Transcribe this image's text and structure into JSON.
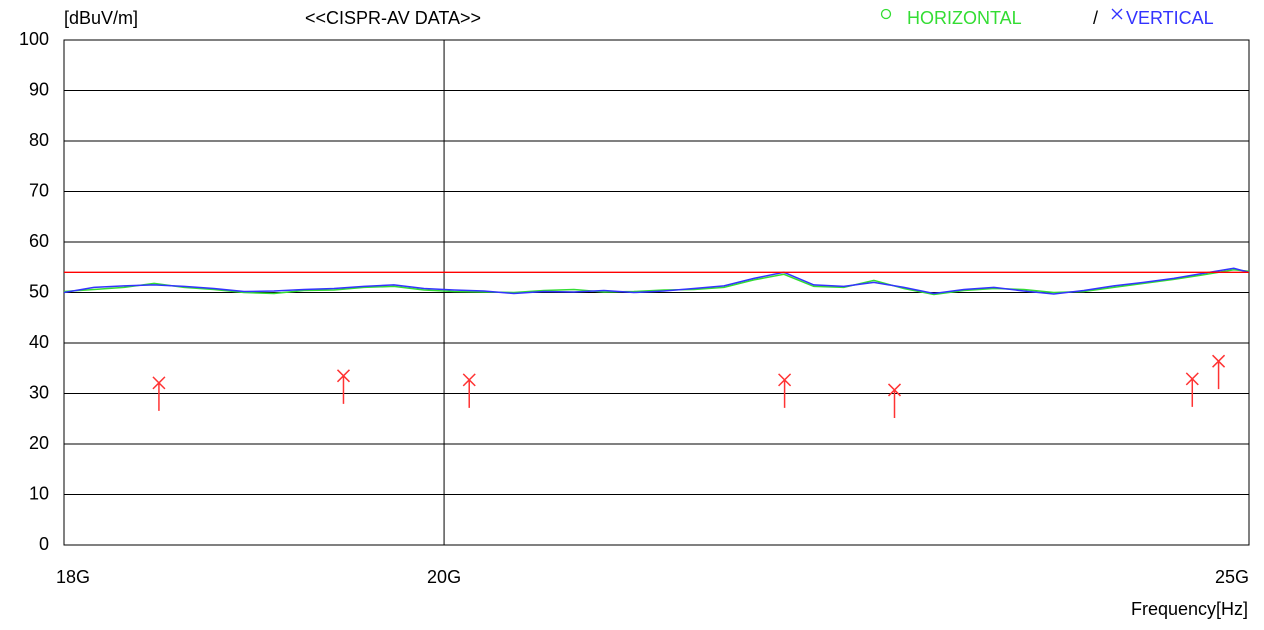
{
  "chart_data": {
    "type": "line",
    "title": "<<CISPR-AV DATA>>",
    "y_label": "[dBuV/m]",
    "x_label": "Frequency[Hz]",
    "log_x": true,
    "grid": true,
    "x": [
      18000000000,
      18150000000,
      18302000000,
      18455000000,
      18609000000,
      18764000000,
      18921000000,
      19079000000,
      19238000000,
      19399000000,
      19561000000,
      19724000000,
      19889000000,
      20055000000,
      20222000000,
      20391000000,
      20561000000,
      20733000000,
      20906000000,
      21081000000,
      21257000000,
      21434000000,
      21613000000,
      21794000000,
      21976000000,
      22159000000,
      22344000000,
      22531000000,
      22719000000,
      22909000000,
      23100000000,
      23293000000,
      23487000000,
      23683000000,
      23881000000,
      24080000000,
      24281000000,
      24484000000,
      24689000000,
      24895000000,
      25000000000
    ],
    "series": [
      {
        "name": "HORIZONTAL",
        "color": "#33dd33",
        "values": [
          50.2,
          50.6,
          51.0,
          51.8,
          51.0,
          50.6,
          50.0,
          49.8,
          50.4,
          50.5,
          51.0,
          51.2,
          50.5,
          50.2,
          50.1,
          50.0,
          50.4,
          50.6,
          50.1,
          50.2,
          50.5,
          50.6,
          51.0,
          52.5,
          53.6,
          51.2,
          51.0,
          52.4,
          50.8,
          49.6,
          50.4,
          50.8,
          50.6,
          50.0,
          50.2,
          51.0,
          51.8,
          52.6,
          53.5,
          54.5,
          54.2
        ]
      },
      {
        "name": "VERTICAL",
        "color": "#3333ff",
        "values": [
          50.0,
          51.0,
          51.3,
          51.5,
          51.2,
          50.8,
          50.2,
          50.3,
          50.6,
          50.8,
          51.2,
          51.5,
          50.8,
          50.5,
          50.3,
          49.8,
          50.2,
          50.1,
          50.4,
          50.0,
          50.3,
          50.8,
          51.3,
          52.8,
          54.0,
          51.5,
          51.2,
          52.0,
          51.0,
          49.8,
          50.6,
          51.0,
          50.3,
          49.7,
          50.4,
          51.3,
          52.0,
          52.8,
          53.8,
          54.8,
          54.0
        ]
      }
    ],
    "limit": {
      "value": 54,
      "color": "#ff0000"
    },
    "markers": {
      "color": "#ff3333",
      "x": [
        18480000000,
        19450000000,
        20140000000,
        21980000000,
        22660000000,
        24610000000,
        24790000000
      ],
      "values": [
        32.1,
        33.5,
        32.7,
        32.7,
        30.7,
        32.9,
        36.4
      ]
    },
    "xlim": [
      18000000000,
      25000000000
    ],
    "xticks": [
      {
        "value": 18000000000,
        "label": "18G"
      },
      {
        "value": 20000000000,
        "label": "20G"
      },
      {
        "value": 25000000000,
        "label": "25G"
      }
    ],
    "ylim": [
      0,
      100
    ],
    "yticks": [
      0,
      10,
      20,
      30,
      40,
      50,
      60,
      70,
      80,
      90,
      100
    ]
  }
}
